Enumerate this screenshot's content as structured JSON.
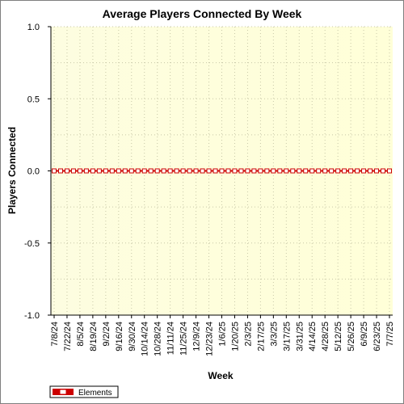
{
  "chart_data": {
    "type": "line",
    "title": "Average Players Connected By Week",
    "xlabel": "Week",
    "ylabel": "Players Connected",
    "ylim": [
      -1.0,
      1.0
    ],
    "y_ticks": [
      "1.0",
      "0.5",
      "0.0",
      "-0.5",
      "-1.0"
    ],
    "y_tick_values": [
      1.0,
      0.5,
      0.0,
      -0.5,
      -1.0
    ],
    "x_tick_labels": [
      "7/8/24",
      "7/22/24",
      "8/5/24",
      "8/19/24",
      "9/2/24",
      "9/16/24",
      "9/30/24",
      "10/14/24",
      "10/28/24",
      "11/11/24",
      "11/25/24",
      "12/9/24",
      "12/23/24",
      "1/6/25",
      "1/20/25",
      "2/3/25",
      "2/17/25",
      "3/3/25",
      "3/17/25",
      "3/31/25",
      "4/14/25",
      "4/28/25",
      "5/12/25",
      "5/26/25",
      "6/9/25",
      "6/23/25",
      "7/7/25"
    ],
    "grid": true,
    "legend_position": "bottom-left",
    "colors": {
      "series": "#cc0000",
      "plot_bg_left": "#fdfde0",
      "plot_bg_right": "#ffffd8",
      "grid": "#c8c8a8"
    },
    "series": [
      {
        "name": "Elements",
        "x": [
          "7/8/24",
          "7/15/24",
          "7/22/24",
          "7/29/24",
          "8/5/24",
          "8/12/24",
          "8/19/24",
          "8/26/24",
          "9/2/24",
          "9/9/24",
          "9/16/24",
          "9/23/24",
          "9/30/24",
          "10/7/24",
          "10/14/24",
          "10/21/24",
          "10/28/24",
          "11/4/24",
          "11/11/24",
          "11/18/24",
          "11/25/24",
          "12/2/24",
          "12/9/24",
          "12/16/24",
          "12/23/24",
          "12/30/24",
          "1/6/25",
          "1/13/25",
          "1/20/25",
          "1/27/25",
          "2/3/25",
          "2/10/25",
          "2/17/25",
          "2/24/25",
          "3/3/25",
          "3/10/25",
          "3/17/25",
          "3/24/25",
          "3/31/25",
          "4/7/25",
          "4/14/25",
          "4/21/25",
          "4/28/25",
          "5/5/25",
          "5/12/25",
          "5/19/25",
          "5/26/25",
          "6/2/25",
          "6/9/25",
          "6/16/25",
          "6/23/25",
          "6/30/25",
          "7/7/25"
        ],
        "values": [
          0,
          0,
          0,
          0,
          0,
          0,
          0,
          0,
          0,
          0,
          0,
          0,
          0,
          0,
          0,
          0,
          0,
          0,
          0,
          0,
          0,
          0,
          0,
          0,
          0,
          0,
          0,
          0,
          0,
          0,
          0,
          0,
          0,
          0,
          0,
          0,
          0,
          0,
          0,
          0,
          0,
          0,
          0,
          0,
          0,
          0,
          0,
          0,
          0,
          0,
          0,
          0,
          0
        ]
      }
    ]
  }
}
